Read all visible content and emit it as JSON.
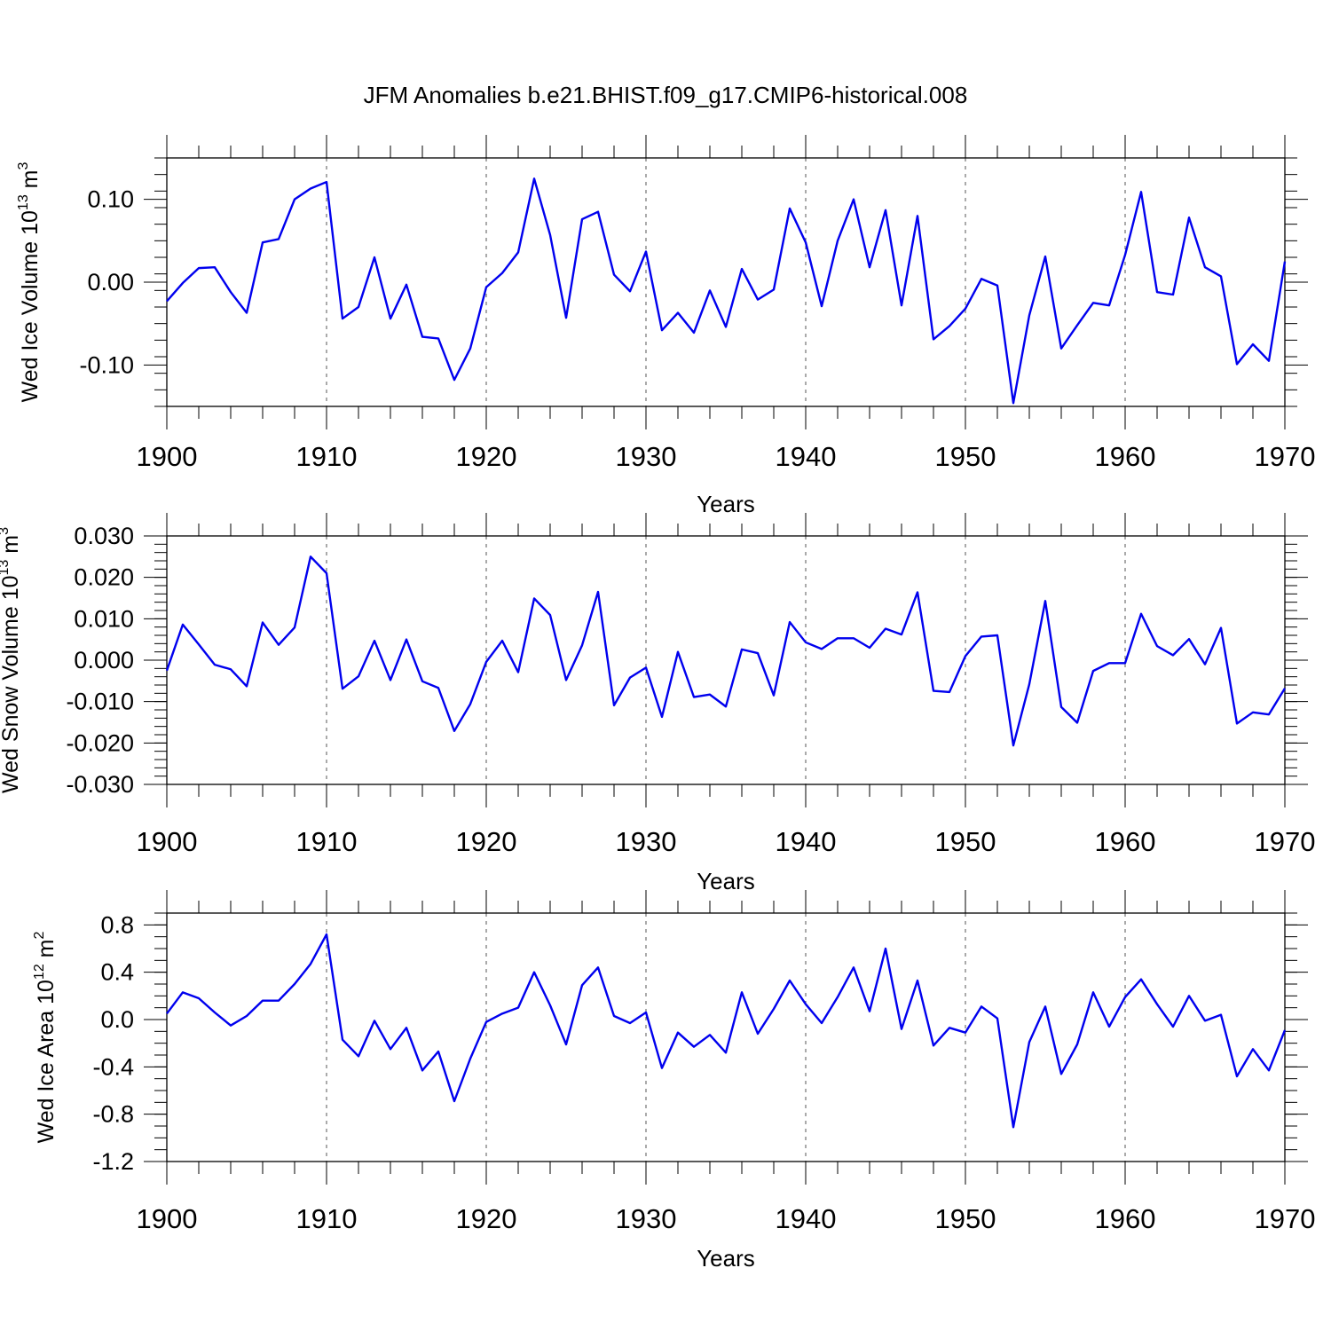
{
  "chart_data": {
    "type": "line",
    "title": "JFM Anomalies b.e21.BHIST.f09_g17.CMIP6-historical.008",
    "x": [
      1900,
      1901,
      1902,
      1903,
      1904,
      1905,
      1906,
      1907,
      1908,
      1909,
      1910,
      1911,
      1912,
      1913,
      1914,
      1915,
      1916,
      1917,
      1918,
      1919,
      1920,
      1921,
      1922,
      1923,
      1924,
      1925,
      1926,
      1927,
      1928,
      1929,
      1930,
      1931,
      1932,
      1933,
      1934,
      1935,
      1936,
      1937,
      1938,
      1939,
      1940,
      1941,
      1942,
      1943,
      1944,
      1945,
      1946,
      1947,
      1948,
      1949,
      1950,
      1951,
      1952,
      1953,
      1954,
      1955,
      1956,
      1957,
      1958,
      1959,
      1960,
      1961,
      1962,
      1963,
      1964,
      1965,
      1966,
      1967,
      1968,
      1969,
      1970
    ],
    "xlim": [
      1900,
      1970
    ],
    "xticks": [
      1900,
      1910,
      1920,
      1930,
      1940,
      1950,
      1960,
      1970
    ],
    "panels": [
      {
        "name": "ice-volume",
        "xlabel": "Years",
        "ylabel_main": "Wed Ice Volume 10",
        "ylabel_exp": "13",
        "ylabel_unit": "m",
        "ylabel_unit_exp": "3",
        "ylim": [
          -0.15,
          0.15
        ],
        "yticks": [
          -0.1,
          0.0,
          0.1
        ],
        "ytick_labels": [
          "-0.10",
          "0.00",
          "0.10"
        ],
        "minor_step": 0.02,
        "values": [
          -0.023,
          -0.001,
          0.017,
          0.018,
          -0.012,
          -0.037,
          0.048,
          0.052,
          0.1,
          0.113,
          0.121,
          -0.044,
          -0.03,
          0.03,
          -0.044,
          -0.003,
          -0.066,
          -0.068,
          -0.118,
          -0.08,
          -0.006,
          0.011,
          0.036,
          0.125,
          0.057,
          -0.043,
          0.076,
          0.085,
          0.009,
          -0.011,
          0.037,
          -0.058,
          -0.037,
          -0.061,
          -0.01,
          -0.054,
          0.016,
          -0.021,
          -0.009,
          0.089,
          0.048,
          -0.029,
          0.05,
          0.1,
          0.018,
          0.087,
          -0.028,
          0.08,
          -0.069,
          -0.053,
          -0.032,
          0.004,
          -0.004,
          -0.146,
          -0.04,
          0.031,
          -0.08,
          -0.052,
          -0.025,
          -0.028,
          0.033,
          0.109,
          -0.012,
          -0.015,
          0.078,
          0.018,
          0.007,
          -0.099,
          -0.075,
          -0.095,
          0.025
        ]
      },
      {
        "name": "snow-volume",
        "xlabel": "Years",
        "ylabel_main": "Wed Snow Volume 10",
        "ylabel_exp": "13",
        "ylabel_unit": "m",
        "ylabel_unit_exp": "3",
        "ylim": [
          -0.03,
          0.03
        ],
        "yticks": [
          -0.03,
          -0.02,
          -0.01,
          0.0,
          0.01,
          0.02,
          0.03
        ],
        "ytick_labels": [
          "-0.030",
          "-0.020",
          "-0.010",
          "0.000",
          "0.010",
          "0.020",
          "0.030"
        ],
        "minor_step": 0.002,
        "values": [
          -0.0025,
          0.0086,
          0.0038,
          -0.0011,
          -0.0022,
          -0.0063,
          0.0091,
          0.0037,
          0.0079,
          0.025,
          0.021,
          -0.0069,
          -0.0039,
          0.0047,
          -0.0048,
          0.005,
          -0.0051,
          -0.0067,
          -0.0171,
          -0.0106,
          -0.0004,
          0.0047,
          -0.0029,
          0.0149,
          0.0109,
          -0.0048,
          0.0036,
          0.0165,
          -0.0109,
          -0.0042,
          -0.0018,
          -0.0137,
          0.002,
          -0.0089,
          -0.0083,
          -0.0112,
          0.0026,
          0.0017,
          -0.0085,
          0.0092,
          0.0043,
          0.0027,
          0.0053,
          0.0053,
          0.003,
          0.0076,
          0.0062,
          0.0164,
          -0.0074,
          -0.0077,
          0.001,
          0.0057,
          0.006,
          -0.0206,
          -0.0058,
          0.0143,
          -0.0113,
          -0.0151,
          -0.0026,
          -0.0007,
          -0.0007,
          0.0112,
          0.0034,
          0.0012,
          0.0051,
          -0.001,
          0.0078,
          -0.0153,
          -0.0126,
          -0.0131,
          -0.0068
        ]
      },
      {
        "name": "ice-area",
        "xlabel": "Years",
        "ylabel_main": "Wed Ice Area 10",
        "ylabel_exp": "12",
        "ylabel_unit": "m",
        "ylabel_unit_exp": "2",
        "ylim": [
          -1.2,
          0.9
        ],
        "yticks": [
          -1.2,
          -0.8,
          -0.4,
          0.0,
          0.4,
          0.8
        ],
        "ytick_labels": [
          "-1.2",
          "-0.8",
          "-0.4",
          "0.0",
          "0.4",
          "0.8"
        ],
        "minor_step": 0.1,
        "values": [
          0.05,
          0.23,
          0.18,
          0.06,
          -0.05,
          0.03,
          0.16,
          0.16,
          0.3,
          0.47,
          0.72,
          -0.17,
          -0.31,
          -0.01,
          -0.25,
          -0.07,
          -0.43,
          -0.27,
          -0.69,
          -0.33,
          -0.02,
          0.05,
          0.1,
          0.4,
          0.12,
          -0.21,
          0.29,
          0.44,
          0.03,
          -0.03,
          0.06,
          -0.41,
          -0.11,
          -0.23,
          -0.13,
          -0.28,
          0.23,
          -0.12,
          0.09,
          0.33,
          0.13,
          -0.03,
          0.19,
          0.44,
          0.07,
          0.6,
          -0.08,
          0.33,
          -0.22,
          -0.07,
          -0.11,
          0.11,
          0.01,
          -0.91,
          -0.19,
          0.11,
          -0.46,
          -0.21,
          0.23,
          -0.06,
          0.19,
          0.34,
          0.13,
          -0.06,
          0.2,
          -0.01,
          0.04,
          -0.48,
          -0.25,
          -0.43,
          -0.09
        ]
      }
    ]
  }
}
